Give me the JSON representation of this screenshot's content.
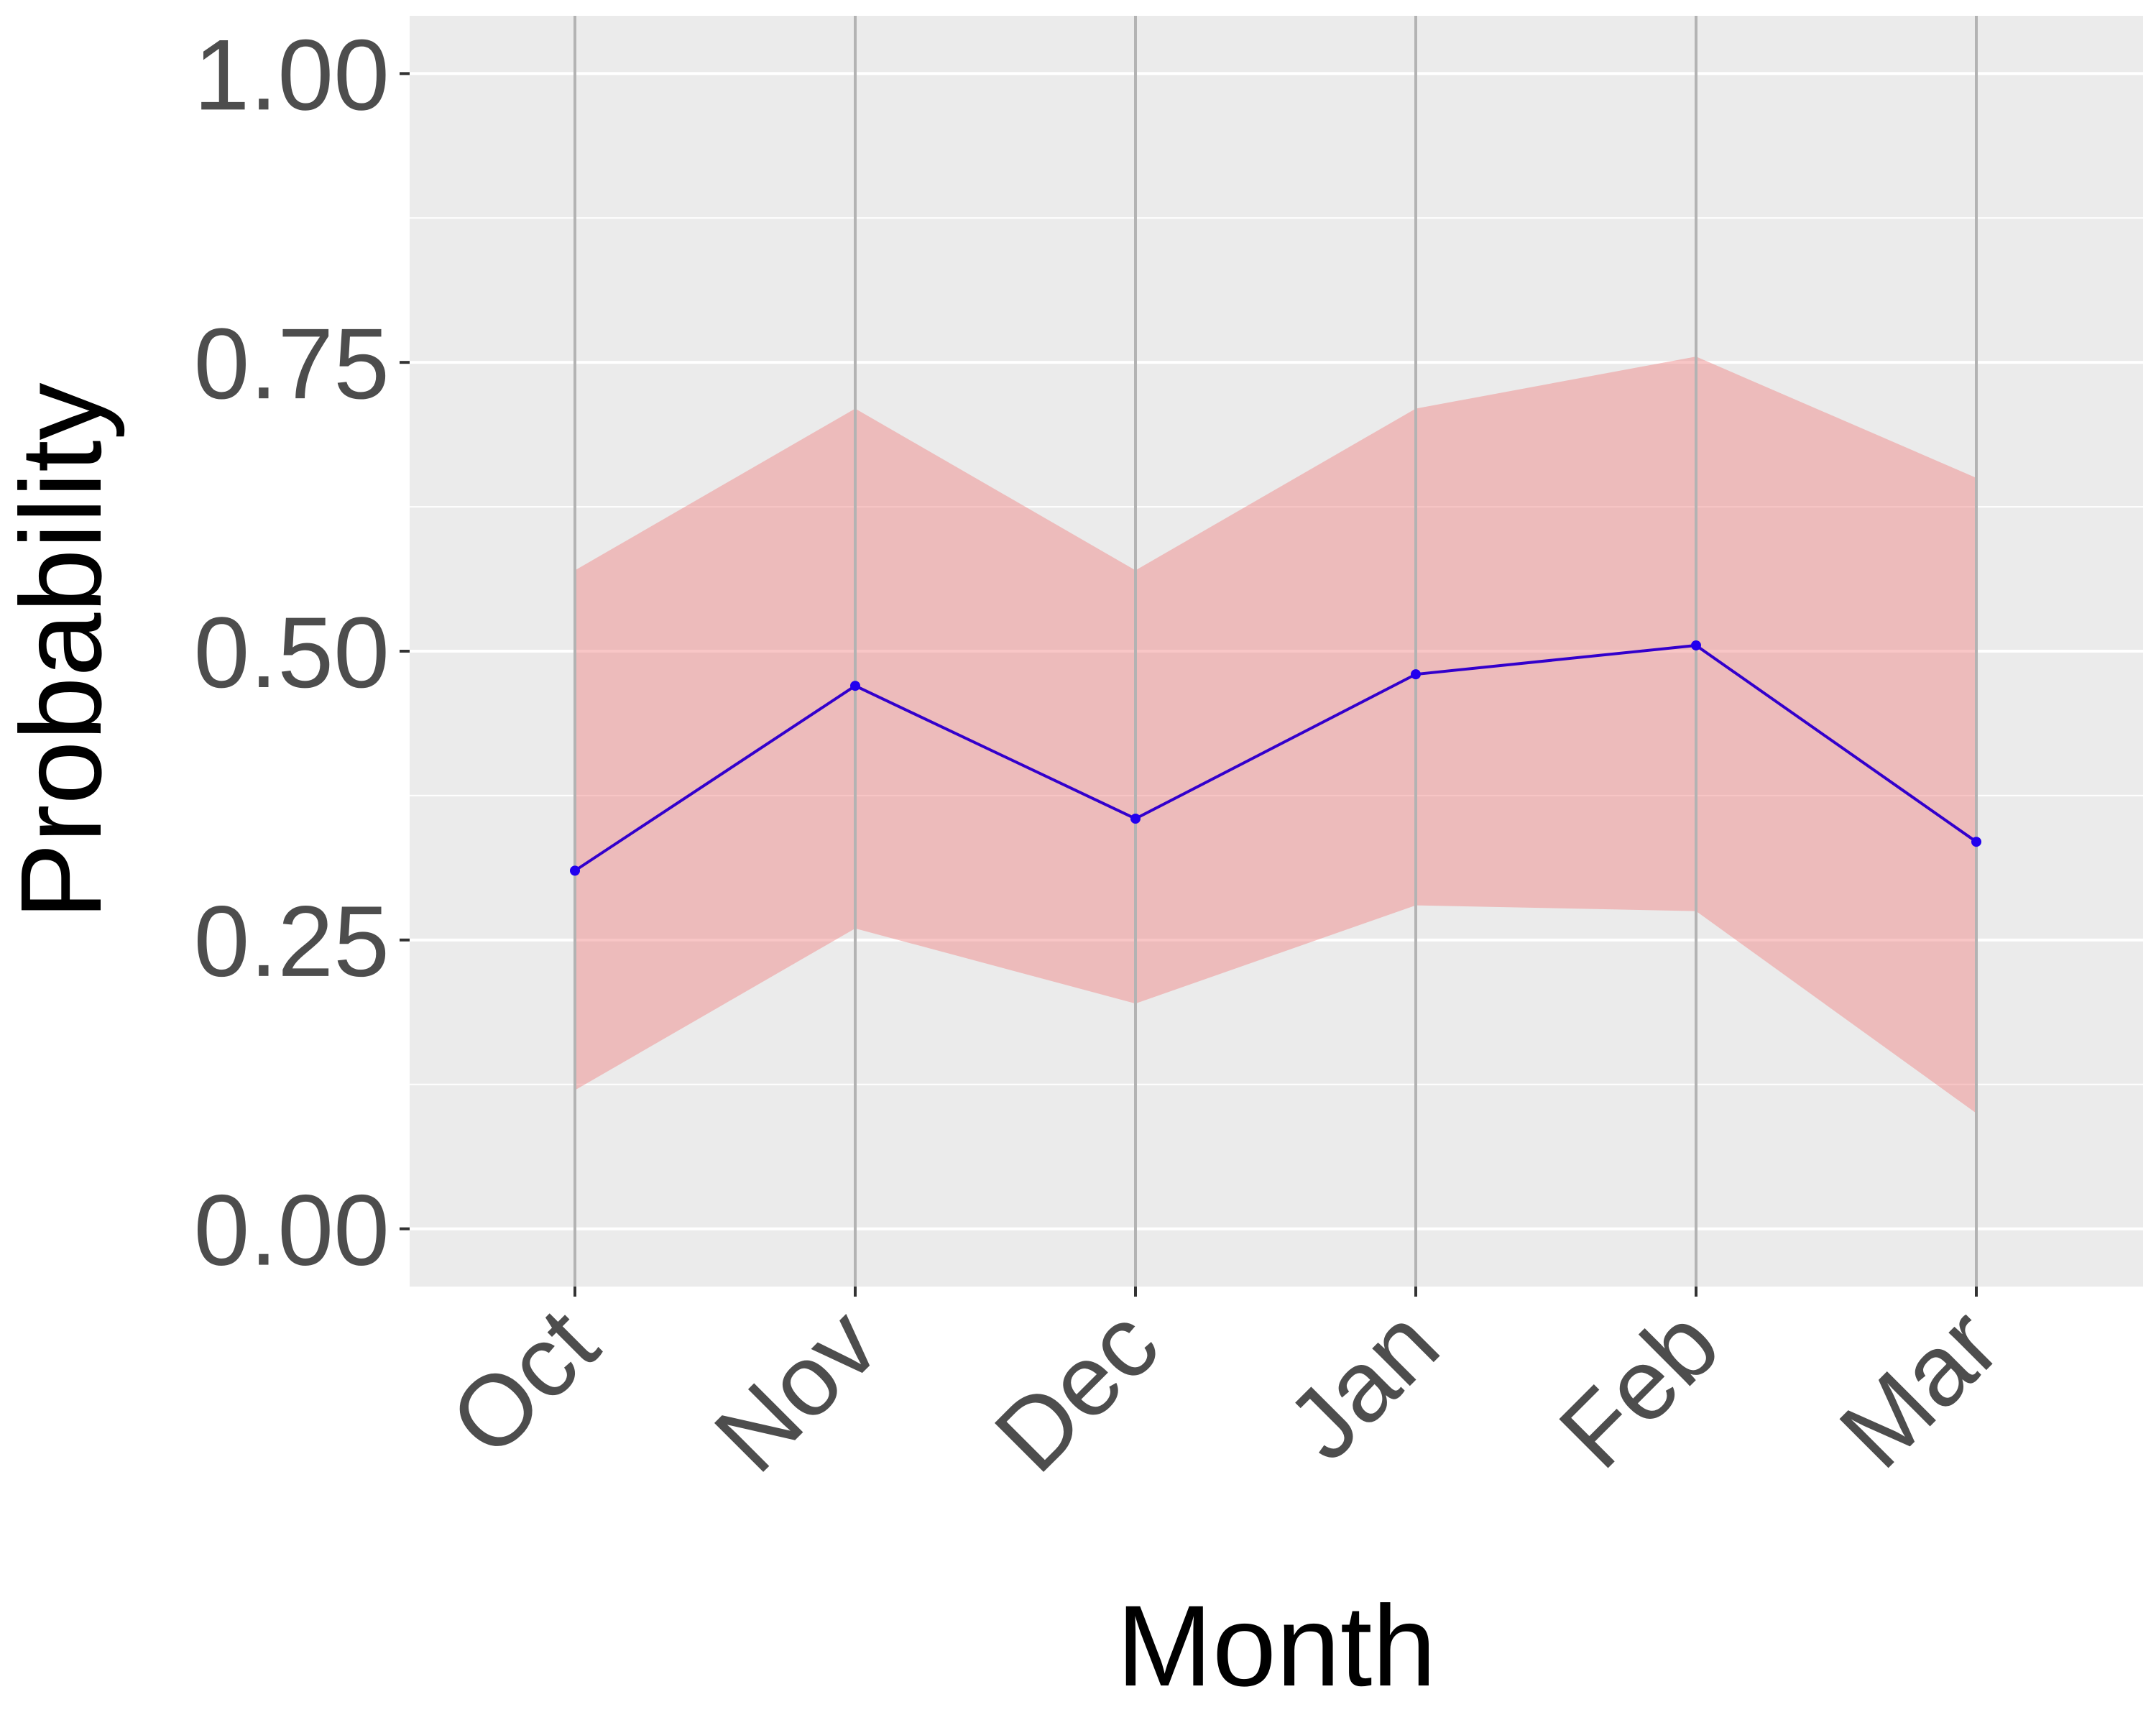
{
  "chart_data": {
    "type": "line",
    "categories": [
      "Oct",
      "Nov",
      "Dec",
      "Jan",
      "Feb",
      "Mar"
    ],
    "series": [
      {
        "values": [
          0.31,
          0.47,
          0.355,
          0.48,
          0.505,
          0.335
        ],
        "band_lower": [
          0.12,
          0.26,
          0.195,
          0.28,
          0.275,
          0.1
        ],
        "band_upper": [
          0.57,
          0.71,
          0.57,
          0.71,
          0.755,
          0.65
        ]
      }
    ],
    "xlabel": "Month",
    "ylabel": "Probability",
    "ylim": [
      -0.05,
      1.05
    ],
    "yticks": [
      0,
      0.25,
      0.5,
      0.75,
      1
    ],
    "ytick_labels": [
      "0.00",
      "0.25",
      "0.50",
      "0.75",
      "1.00"
    ],
    "grid": true,
    "colors": {
      "panel": "#ebebeb",
      "grid": "#ffffff",
      "vline": "#b3b3b3",
      "ribbon": "#f08080",
      "line": "#3300cc",
      "point": "#2200ee"
    }
  }
}
